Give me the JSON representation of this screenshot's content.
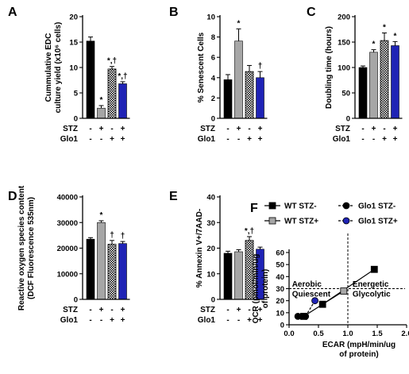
{
  "colors": {
    "wt_stz_minus": "#000000",
    "wt_stz_plus": "#a6a6a6",
    "glo1_stz_minus": "checker-black-white",
    "glo1_stz_plus": "#1f23b5"
  },
  "row_labels": {
    "stz": "STZ",
    "glo1": "Glo1"
  },
  "charts": [
    {
      "panel": "A",
      "chart_data": {
        "type": "bar",
        "ylabel": "Cummulative EDC culture yield (x10⁶ cells)",
        "ylabel_lines": [
          "Cummulative EDC",
          "culture yield (x10⁶ cells)"
        ],
        "ylim": [
          0,
          20
        ],
        "yticks": [
          "0",
          "5",
          "10",
          "15",
          "20"
        ],
        "stz": [
          "-",
          "+",
          "-",
          "+"
        ],
        "glo1": [
          "-",
          "-",
          "+",
          "+"
        ],
        "values": [
          15.2,
          2.0,
          9.7,
          6.8
        ],
        "errors": [
          0.8,
          0.5,
          0.5,
          0.4
        ],
        "sig": [
          "",
          "*",
          "*,†",
          "*,†"
        ]
      }
    },
    {
      "panel": "B",
      "chart_data": {
        "type": "bar",
        "ylabel": "% Senescent Cells",
        "ylim": [
          0,
          10
        ],
        "yticks": [
          "0",
          "2",
          "4",
          "6",
          "8",
          "10"
        ],
        "stz": [
          "-",
          "+",
          "-",
          "+"
        ],
        "glo1": [
          "-",
          "-",
          "+",
          "+"
        ],
        "values": [
          3.8,
          7.6,
          4.6,
          4.0
        ],
        "errors": [
          0.5,
          1.2,
          0.6,
          0.6
        ],
        "sig": [
          "",
          "*",
          "",
          "†"
        ]
      }
    },
    {
      "panel": "C",
      "chart_data": {
        "type": "bar",
        "ylabel": "Doubling time (hours)",
        "ylim": [
          0,
          200
        ],
        "yticks": [
          "0",
          "50",
          "100",
          "150",
          "200"
        ],
        "stz": [
          "-",
          "+",
          "-",
          "+"
        ],
        "glo1": [
          "-",
          "-",
          "+",
          "+"
        ],
        "values": [
          100,
          130,
          153,
          143
        ],
        "errors": [
          3,
          5,
          15,
          8
        ],
        "sig": [
          "",
          "*",
          "*",
          "*"
        ]
      }
    },
    {
      "panel": "D",
      "chart_data": {
        "type": "bar",
        "ylabel": "Reactive oxygen species content (DCF Fluorescence 535nm)",
        "ylabel_lines": [
          "Reactive oxygen species content",
          "(DCF Fluorescence 535nm)"
        ],
        "ylim": [
          0,
          40000
        ],
        "yticks": [
          "0",
          "10000",
          "20000",
          "30000",
          "40000"
        ],
        "stz": [
          "-",
          "+",
          "-",
          "+"
        ],
        "glo1": [
          "-",
          "-",
          "+",
          "+"
        ],
        "values": [
          23500,
          30000,
          21500,
          21800
        ],
        "errors": [
          600,
          700,
          1500,
          800
        ],
        "sig": [
          "",
          "*",
          "†",
          "†"
        ]
      }
    },
    {
      "panel": "E",
      "chart_data": {
        "type": "bar",
        "ylabel": "% Annexin V+/7AAD-",
        "ylim": [
          0,
          40
        ],
        "yticks": [
          "0",
          "10",
          "20",
          "30",
          "40"
        ],
        "stz": [
          "-",
          "+",
          "-",
          "+"
        ],
        "glo1": [
          "-",
          "-",
          "+",
          "+"
        ],
        "values": [
          18.0,
          18.6,
          23.0,
          19.6
        ],
        "errors": [
          0.8,
          0.8,
          1.5,
          0.8
        ],
        "sig": [
          "",
          "",
          "*,†",
          ""
        ]
      }
    }
  ],
  "scatter": {
    "panel": "F",
    "chart_data": {
      "type": "scatter",
      "xlabel": "ECAR (mpH/min/ug of protein)",
      "xlabel_lines": [
        "ECAR (mpH/min/ug",
        "of protein)"
      ],
      "ylabel": "OCR (pmol/min/ug of protein)",
      "ylabel_lines": [
        "OCR (pmol/min/ug",
        "of protein)"
      ],
      "xlim": [
        0,
        2.0
      ],
      "ylim": [
        0,
        60
      ],
      "xticks": [
        "0.0",
        "0.5",
        "1.0",
        "1.5",
        "2.0"
      ],
      "yticks": [
        "0",
        "10",
        "20",
        "30",
        "40",
        "50",
        "60"
      ],
      "ref_x": 1.0,
      "ref_y": 30,
      "regions": [
        "Aerobic",
        "Quiescent",
        "Energetic",
        "Glycolytic"
      ],
      "series": [
        {
          "name": "WT STZ-",
          "marker": "square",
          "color": "#000000",
          "line": "solid",
          "points": [
            [
              0.25,
              7
            ],
            [
              0.57,
              17
            ],
            [
              1.45,
              46
            ]
          ]
        },
        {
          "name": "WT STZ+",
          "marker": "square",
          "color": "#a6a6a6",
          "line": "solid",
          "points": [
            [
              0.93,
              28
            ]
          ]
        },
        {
          "name": "Glo1 STZ-",
          "marker": "circle",
          "color": "#000000",
          "line": "dashed",
          "points": [
            [
              0.15,
              7
            ],
            [
              0.28,
              7
            ]
          ]
        },
        {
          "name": "Glo1 STZ+",
          "marker": "circle",
          "color": "#1f23b5",
          "line": "dashed",
          "points": [
            [
              0.44,
              20
            ]
          ]
        }
      ]
    }
  }
}
